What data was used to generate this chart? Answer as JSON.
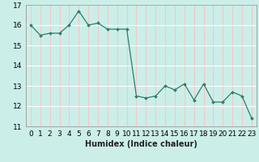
{
  "x": [
    0,
    1,
    2,
    3,
    4,
    5,
    6,
    7,
    8,
    9,
    10,
    11,
    12,
    13,
    14,
    15,
    16,
    17,
    18,
    19,
    20,
    21,
    22,
    23
  ],
  "y": [
    16.0,
    15.5,
    15.6,
    15.6,
    16.0,
    16.7,
    16.0,
    16.1,
    15.8,
    15.8,
    15.8,
    12.5,
    12.4,
    12.5,
    13.0,
    12.8,
    13.1,
    12.3,
    13.1,
    12.2,
    12.2,
    12.7,
    12.5,
    11.4
  ],
  "xlabel": "Humidex (Indice chaleur)",
  "ylim": [
    11,
    17
  ],
  "xlim": [
    -0.5,
    23.5
  ],
  "line_color": "#2e7d6e",
  "marker_color": "#2e7d6e",
  "bg_color": "#cceee8",
  "grid_color_major": "#ffffff",
  "grid_color_minor": "#f0c8c8",
  "axis_color": "#888888",
  "label_fontsize": 7,
  "tick_fontsize": 6.5
}
